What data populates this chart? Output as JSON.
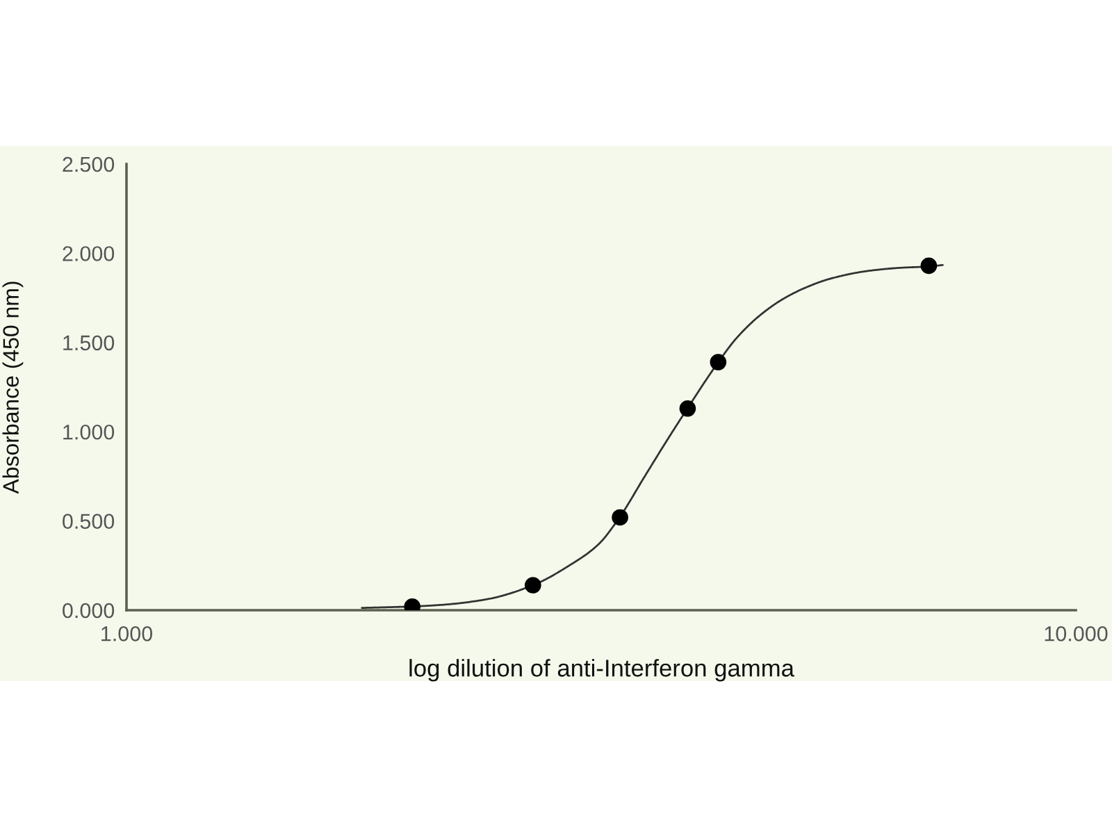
{
  "chart_data": {
    "type": "scatter",
    "xlabel": "log dilution of anti-Interferon gamma",
    "ylabel": "Absorbance (450 nm)",
    "log": "x",
    "grid": false,
    "xlim": [
      1,
      10
    ],
    "xticks": [
      {
        "value": 1,
        "label": "1.000"
      },
      {
        "value": 10,
        "label": "10.000"
      }
    ],
    "ylim": [
      0,
      2.5
    ],
    "yticks": [
      {
        "value": 0,
        "label": "0.000"
      },
      {
        "value": 0.5,
        "label": "0.500"
      },
      {
        "value": 1,
        "label": "1.000"
      },
      {
        "value": 1.5,
        "label": "1.500"
      },
      {
        "value": 2,
        "label": "2.000"
      },
      {
        "value": 2.5,
        "label": "2.500"
      }
    ],
    "series": [
      {
        "type": "line",
        "color": "#333333",
        "line_style": "solid",
        "marker": "none",
        "x": [
          1.77,
          2.0,
          2.16,
          2.4,
          2.68,
          2.93,
          3.14,
          3.31,
          3.51,
          3.71,
          3.9,
          4.2,
          4.39,
          4.65,
          4.92,
          5.2,
          5.5,
          6.02,
          6.51,
          7.0,
          7.24
        ],
        "values": [
          0.013,
          0.021,
          0.031,
          0.062,
          0.14,
          0.252,
          0.368,
          0.524,
          0.745,
          0.952,
          1.132,
          1.389,
          1.524,
          1.653,
          1.745,
          1.809,
          1.856,
          1.9,
          1.918,
          1.926,
          1.934
        ]
      },
      {
        "color": "#000000",
        "marker": "circle",
        "x": [
          2.0,
          2.68,
          3.31,
          3.9,
          4.2,
          7.0
        ],
        "values": [
          0.02,
          0.14,
          0.52,
          1.13,
          1.39,
          1.93
        ]
      }
    ]
  }
}
